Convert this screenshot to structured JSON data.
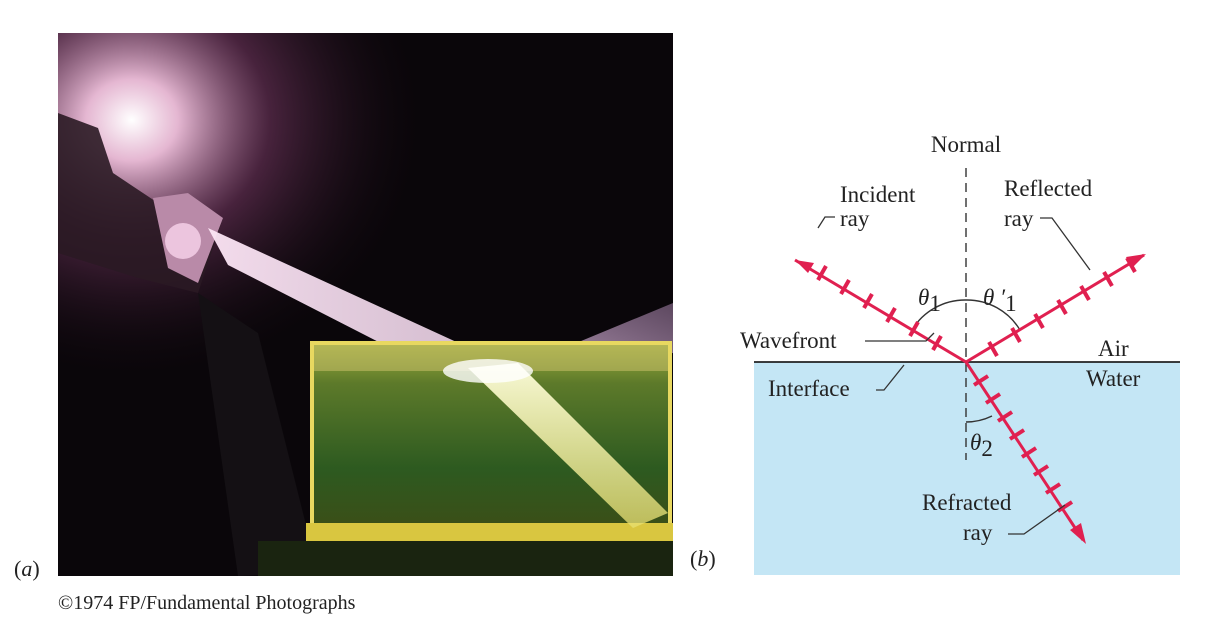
{
  "panel_a": {
    "label": "a",
    "credit": "©1974 FP/Fundamental Photographs"
  },
  "panel_b": {
    "label": "b",
    "labels": {
      "normal": "Normal",
      "incident_line1": "Incident",
      "incident_line2": "ray",
      "reflected_line1": "Reflected",
      "reflected_line2": "ray",
      "theta1": "θ",
      "theta1_sub": "1",
      "theta1p": "θ ′",
      "theta1p_sub": "1",
      "wavefront": "Wavefront",
      "air": "Air",
      "water": "Water",
      "interface": "Interface",
      "theta2": "θ",
      "theta2_sub": "2",
      "refracted_line1": "Refracted",
      "refracted_line2": "ray"
    },
    "colors": {
      "ray": "#e02050",
      "water": "#c4e6f5",
      "interface": "#222222"
    }
  }
}
